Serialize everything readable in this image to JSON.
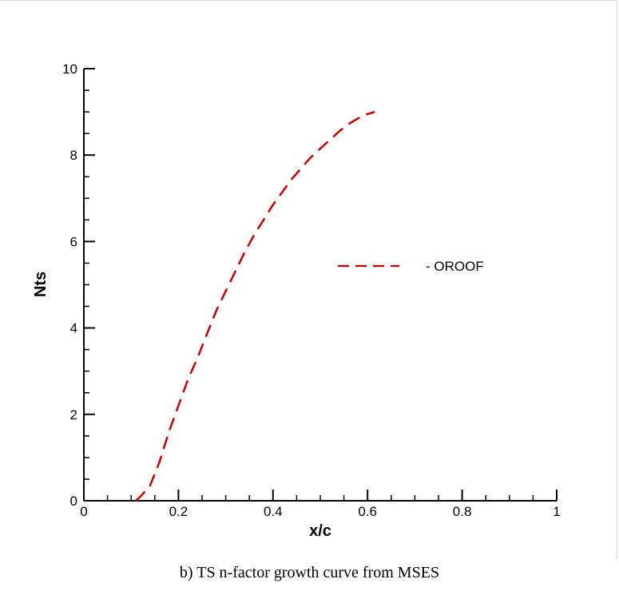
{
  "caption": "b) TS n-factor growth curve from MSES",
  "chart_data": {
    "type": "line",
    "xlabel": "x/c",
    "ylabel": "Nts",
    "xlim": [
      0,
      1
    ],
    "ylim": [
      0,
      10
    ],
    "x_ticks": [
      0,
      0.2,
      0.4,
      0.6,
      0.8,
      1
    ],
    "x_tick_labels": [
      "0",
      "0.2",
      "0.4",
      "0.6",
      "0.8",
      "1"
    ],
    "y_ticks": [
      0,
      2,
      4,
      6,
      8,
      10
    ],
    "y_tick_labels": [
      "0",
      "2",
      "4",
      "6",
      "8",
      "10"
    ],
    "minor_ticks_per_major": 4,
    "grid": false,
    "legend_position": "center-right",
    "series": [
      {
        "name": "- OROOF",
        "color": "#cc0000",
        "style": "dashed",
        "x": [
          0.11,
          0.12,
          0.14,
          0.16,
          0.18,
          0.2,
          0.22,
          0.24,
          0.26,
          0.28,
          0.3,
          0.32,
          0.34,
          0.36,
          0.38,
          0.4,
          0.42,
          0.44,
          0.46,
          0.48,
          0.5,
          0.52,
          0.54,
          0.56,
          0.58,
          0.6,
          0.615
        ],
        "y": [
          0.0,
          0.1,
          0.35,
          0.9,
          1.6,
          2.2,
          2.8,
          3.3,
          3.85,
          4.4,
          4.85,
          5.3,
          5.75,
          6.15,
          6.5,
          6.85,
          7.15,
          7.45,
          7.7,
          7.95,
          8.15,
          8.35,
          8.55,
          8.72,
          8.85,
          8.95,
          9.0
        ]
      }
    ]
  }
}
